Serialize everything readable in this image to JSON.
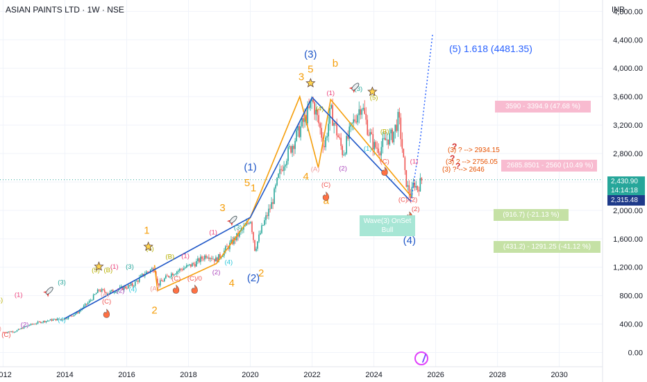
{
  "header": {
    "title": "ASIAN PAINTS LTD · 1W · NSE",
    "currency": "INR"
  },
  "price_tags": {
    "last": "2,430.90",
    "countdown": "14:14:18",
    "reference": "2,315.48"
  },
  "colors": {
    "up": "#26a69a",
    "down": "#ef5350",
    "impulse": "#1e56c7",
    "corrective": "#f59e0b",
    "projection": "#2962ff",
    "label_pink": "#ec407a",
    "label_green": "#8bc34a"
  },
  "icons": [
    "rocket-icon",
    "star-icon",
    "fire-icon",
    "question-icon",
    "tradingview-logo-icon"
  ],
  "projection_label": "(5) 1.618 (4481.35)",
  "annotations": {
    "zone1": "3590 - 3394.9 (47.68 %)",
    "zone2": "2685.8501 - 2560 (10.49 %)",
    "zone3": "(916.7) (-21.13 %)",
    "zone4": "(431.2) - 1291.25 (-41.12 %)",
    "target1": "(3) ? --> 2934.15",
    "target2": "(3) ? --> 2756.05",
    "target3": "(3) ? --> 2646",
    "note": "Wave(3) OnSet Bull"
  },
  "chart_data": {
    "type": "candlestick",
    "title": "ASIAN PAINTS LTD · 1W · NSE",
    "ylabel": "INR",
    "x_ticks": [
      "2012",
      "2014",
      "2016",
      "2018",
      "2020",
      "2022",
      "2024",
      "2026",
      "2028",
      "2030"
    ],
    "y_ticks": [
      "0.00",
      "400.00",
      "800.00",
      "1,200.00",
      "1,600.00",
      "2,000.00",
      "2,400.00",
      "2,800.00",
      "3,200.00",
      "3,600.00",
      "4,000.00",
      "4,400.00",
      "4,800.00"
    ],
    "xlim": [
      2011.9,
      2031.4
    ],
    "ylim": [
      -200,
      4960
    ],
    "grid": true,
    "last_price": 2430.9,
    "price_path": [
      [
        2012.0,
        285
      ],
      [
        2012.4,
        300
      ],
      [
        2012.8,
        380
      ],
      [
        2013.2,
        430
      ],
      [
        2013.6,
        460
      ],
      [
        2014.0,
        480
      ],
      [
        2014.4,
        560
      ],
      [
        2014.8,
        720
      ],
      [
        2015.1,
        880
      ],
      [
        2015.4,
        840
      ],
      [
        2015.8,
        900
      ],
      [
        2016.2,
        950
      ],
      [
        2016.6,
        1120
      ],
      [
        2016.9,
        1190
      ],
      [
        2017.0,
        950
      ],
      [
        2017.4,
        1100
      ],
      [
        2017.8,
        1180
      ],
      [
        2018.2,
        1250
      ],
      [
        2018.6,
        1380
      ],
      [
        2018.9,
        1300
      ],
      [
        2019.2,
        1450
      ],
      [
        2019.6,
        1650
      ],
      [
        2019.9,
        1800
      ],
      [
        2020.0,
        1900
      ],
      [
        2020.15,
        1450
      ],
      [
        2020.4,
        1780
      ],
      [
        2020.7,
        2100
      ],
      [
        2020.9,
        2450
      ],
      [
        2021.1,
        2700
      ],
      [
        2021.5,
        3050
      ],
      [
        2021.9,
        3400
      ],
      [
        2022.0,
        3560
      ],
      [
        2022.2,
        3250
      ],
      [
        2022.4,
        2900
      ],
      [
        2022.6,
        3400
      ],
      [
        2022.8,
        3100
      ],
      [
        2023.0,
        2800
      ],
      [
        2023.3,
        3200
      ],
      [
        2023.6,
        3500
      ],
      [
        2023.8,
        3150
      ],
      [
        2024.0,
        2900
      ],
      [
        2024.2,
        2870
      ],
      [
        2024.4,
        3000
      ],
      [
        2024.6,
        3050
      ],
      [
        2024.8,
        3300
      ],
      [
        2024.9,
        2950
      ],
      [
        2025.0,
        2500
      ],
      [
        2025.1,
        2300
      ],
      [
        2025.2,
        2200
      ],
      [
        2025.3,
        2400
      ],
      [
        2025.4,
        2300
      ],
      [
        2025.55,
        2430.9
      ]
    ],
    "wave_lines": {
      "impulse": [
        [
          2014.0,
          480
        ],
        [
          2020.0,
          1900
        ],
        [
          2022.0,
          3590
        ],
        [
          2025.2,
          2124
        ]
      ],
      "corrective": [
        [
          2016.9,
          1230
        ],
        [
          2017.0,
          870
        ],
        [
          2018.9,
          1250
        ],
        [
          2020.0,
          1900
        ],
        [
          2021.6,
          3600
        ],
        [
          2022.2,
          2600
        ],
        [
          2022.6,
          3560
        ],
        [
          2025.2,
          2200
        ]
      ],
      "projection": [
        [
          2025.2,
          2124
        ],
        [
          2025.5,
          3000
        ],
        [
          2025.9,
          4481.35
        ]
      ]
    },
    "wave_labels": [
      {
        "t": "(B)",
        "x": 2011.85,
        "y": 710,
        "c": "#b7b000"
      },
      {
        "t": "(1)",
        "x": 2012.5,
        "y": 780,
        "c": "#ec407a"
      },
      {
        "t": "(2)",
        "x": 2012.7,
        "y": 360,
        "c": "#ab47bc"
      },
      {
        "t": "(A)",
        "x": 2011.8,
        "y": 310,
        "c": "#ef9a9a"
      },
      {
        "t": "(C)",
        "x": 2012.1,
        "y": 220,
        "c": "#ef5350"
      },
      {
        "t": "(3)",
        "x": 2013.9,
        "y": 960,
        "c": "#26a69a"
      },
      {
        "t": "(4)",
        "x": 2013.9,
        "y": 430,
        "c": "#26c6da"
      },
      {
        "t": "(5)",
        "x": 2015.0,
        "y": 1130,
        "c": "#b7b000"
      },
      {
        "t": "(B)",
        "x": 2015.4,
        "y": 1130,
        "c": "#b7b000"
      },
      {
        "t": "(1)",
        "x": 2015.6,
        "y": 1180,
        "c": "#ec407a"
      },
      {
        "t": "(3)",
        "x": 2016.1,
        "y": 1180,
        "c": "#26a69a"
      },
      {
        "t": "(A)",
        "x": 2015.3,
        "y": 790,
        "c": "#ef9a9a"
      },
      {
        "t": "(C)",
        "x": 2015.35,
        "y": 690,
        "c": "#ef5350"
      },
      {
        "t": "(2)",
        "x": 2015.8,
        "y": 840,
        "c": "#ab47bc"
      },
      {
        "t": "(4)",
        "x": 2016.2,
        "y": 860,
        "c": "#26c6da"
      },
      {
        "t": "(5)",
        "x": 2016.75,
        "y": 1430,
        "c": "#b7b000"
      },
      {
        "t": "(A)",
        "x": 2016.9,
        "y": 870,
        "c": "#ef9a9a"
      },
      {
        "t": "(B)",
        "x": 2017.4,
        "y": 1320,
        "c": "#b7b000"
      },
      {
        "t": "(1)",
        "x": 2017.9,
        "y": 1330,
        "c": "#ec407a"
      },
      {
        "t": "(C)",
        "x": 2017.6,
        "y": 1010,
        "c": "#ef5350"
      },
      {
        "t": "(C)/0",
        "x": 2018.2,
        "y": 1010,
        "c": "#ef5350"
      },
      {
        "t": "(2)",
        "x": 2018.9,
        "y": 1100,
        "c": "#ab47bc"
      },
      {
        "t": "(1)",
        "x": 2018.8,
        "y": 1660,
        "c": "#ec407a"
      },
      {
        "t": "(3)",
        "x": 2019.6,
        "y": 1730,
        "c": "#26a69a"
      },
      {
        "t": "(4)",
        "x": 2019.3,
        "y": 1240,
        "c": "#26c6da"
      },
      {
        "t": "(A)",
        "x": 2022.1,
        "y": 2550,
        "c": "#ef9a9a"
      },
      {
        "t": "(C)",
        "x": 2022.45,
        "y": 2330,
        "c": "#ef5350"
      },
      {
        "t": "(1)",
        "x": 2022.6,
        "y": 3620,
        "c": "#ec407a"
      },
      {
        "t": "(4)",
        "x": 2022.25,
        "y": 3400,
        "c": "#b7b000"
      },
      {
        "t": "(2)",
        "x": 2023.0,
        "y": 2560,
        "c": "#ab47bc"
      },
      {
        "t": "(3)",
        "x": 2023.5,
        "y": 3680,
        "c": "#26a69a"
      },
      {
        "t": "(1)",
        "x": 2023.8,
        "y": 2840,
        "c": "#26c6da"
      },
      {
        "t": "(5)",
        "x": 2024.0,
        "y": 3560,
        "c": "#b7b000"
      },
      {
        "t": "(B)",
        "x": 2024.35,
        "y": 3080,
        "c": "#b7b000"
      },
      {
        "t": "(C)",
        "x": 2024.35,
        "y": 2660,
        "c": "#ef5350"
      },
      {
        "t": "(1)",
        "x": 2025.3,
        "y": 2660,
        "c": "#ec407a"
      },
      {
        "t": "(C)/(2)",
        "x": 2025.1,
        "y": 2120,
        "c": "#ef5350"
      },
      {
        "t": "(2)",
        "x": 2025.35,
        "y": 1990,
        "c": "#ef5350"
      }
    ],
    "major_labels": [
      {
        "t": "1",
        "x": 2016.65,
        "y": 1670,
        "c": "#f59e0b",
        "s": 15
      },
      {
        "t": "2",
        "x": 2016.9,
        "y": 550,
        "c": "#f59e0b",
        "s": 15
      },
      {
        "t": "3",
        "x": 2019.1,
        "y": 1990,
        "c": "#f59e0b",
        "s": 15
      },
      {
        "t": "4",
        "x": 2019.4,
        "y": 930,
        "c": "#f59e0b",
        "s": 15
      },
      {
        "t": "5",
        "x": 2019.9,
        "y": 2340,
        "c": "#f59e0b",
        "s": 15
      },
      {
        "t": "1",
        "x": 2020.1,
        "y": 2270,
        "c": "#f59e0b",
        "s": 15
      },
      {
        "t": "(1)",
        "x": 2020.0,
        "y": 2560,
        "c": "#1e56c7",
        "s": 15
      },
      {
        "t": "(2)",
        "x": 2020.1,
        "y": 1000,
        "c": "#1e56c7",
        "s": 15
      },
      {
        "t": "2",
        "x": 2020.35,
        "y": 1070,
        "c": "#f59e0b",
        "s": 15
      },
      {
        "t": "3",
        "x": 2021.65,
        "y": 3830,
        "c": "#f59e0b",
        "s": 15
      },
      {
        "t": "4",
        "x": 2021.8,
        "y": 2430,
        "c": "#f59e0b",
        "s": 15
      },
      {
        "t": "(3)",
        "x": 2021.95,
        "y": 4150,
        "c": "#1e56c7",
        "s": 15
      },
      {
        "t": "5",
        "x": 2021.95,
        "y": 3940,
        "c": "#f59e0b",
        "s": 15
      },
      {
        "t": "b",
        "x": 2022.75,
        "y": 4020,
        "c": "#f59e0b",
        "s": 15
      },
      {
        "t": "a",
        "x": 2022.45,
        "y": 2090,
        "c": "#f59e0b",
        "s": 15
      },
      {
        "t": "c",
        "x": 2025.15,
        "y": 1720,
        "c": "#8bc34a",
        "s": 15
      },
      {
        "t": "(4)",
        "x": 2025.15,
        "y": 1530,
        "c": "#1e56c7",
        "s": 15
      }
    ],
    "icons": [
      {
        "n": "rocket-icon",
        "x": 2013.5,
        "y": 870
      },
      {
        "n": "star-icon",
        "x": 2015.1,
        "y": 1210
      },
      {
        "n": "star-icon",
        "x": 2016.7,
        "y": 1490
      },
      {
        "n": "rocket-icon",
        "x": 2019.45,
        "y": 1870
      },
      {
        "n": "star-icon",
        "x": 2021.95,
        "y": 3790
      },
      {
        "n": "rocket-icon",
        "x": 2023.4,
        "y": 3740
      },
      {
        "n": "star-icon",
        "x": 2023.95,
        "y": 3670
      },
      {
        "n": "fire-icon",
        "x": 2015.35,
        "y": 540
      },
      {
        "n": "fire-icon",
        "x": 2017.6,
        "y": 880
      },
      {
        "n": "fire-icon",
        "x": 2018.2,
        "y": 880
      },
      {
        "n": "fire-icon",
        "x": 2022.45,
        "y": 2190
      },
      {
        "n": "fire-icon",
        "x": 2024.35,
        "y": 2540
      },
      {
        "n": "fire-icon",
        "x": 2025.15,
        "y": 1910
      }
    ]
  }
}
